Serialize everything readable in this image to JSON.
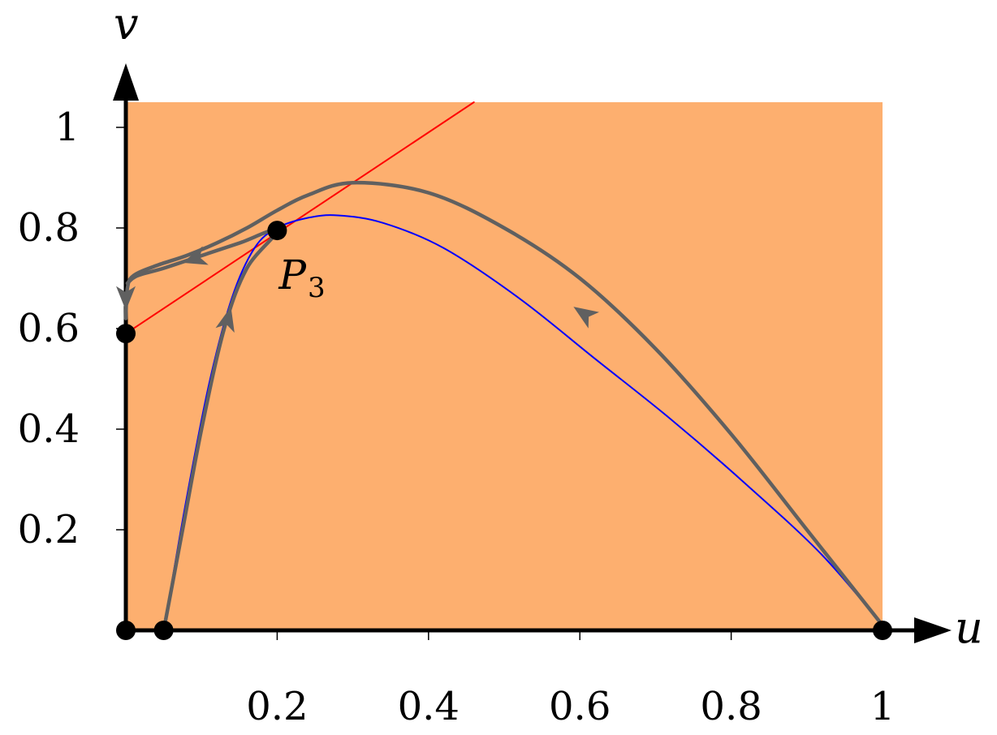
{
  "chart_data": {
    "type": "line",
    "xlabel": "u",
    "ylabel": "v",
    "xlim": [
      0,
      1
    ],
    "ylim": [
      0,
      1.05
    ],
    "grid": false,
    "region_color": "#fdaf6f",
    "x_ticks": [
      {
        "value": 0.2,
        "label": "0.2"
      },
      {
        "value": 0.4,
        "label": "0.4"
      },
      {
        "value": 0.6,
        "label": "0.6"
      },
      {
        "value": 0.8,
        "label": "0.8"
      },
      {
        "value": 1.0,
        "label": "1"
      }
    ],
    "y_ticks": [
      {
        "value": 0.2,
        "label": "0.2"
      },
      {
        "value": 0.4,
        "label": "0.4"
      },
      {
        "value": 0.6,
        "label": "0.6"
      },
      {
        "value": 0.8,
        "label": "0.8"
      },
      {
        "value": 1.0,
        "label": "1"
      }
    ],
    "series": [
      {
        "role": "straight-nullcline",
        "color": "#ff0000",
        "points": [
          [
            0,
            0.59
          ],
          [
            0.46,
            1.05
          ]
        ]
      },
      {
        "role": "curved-nullcline",
        "color": "#0000ff",
        "points": [
          [
            0.05,
            0
          ],
          [
            0.08,
            0.26
          ],
          [
            0.11,
            0.49
          ],
          [
            0.14,
            0.66
          ],
          [
            0.17,
            0.76
          ],
          [
            0.2,
            0.8
          ],
          [
            0.24,
            0.82
          ],
          [
            0.28,
            0.825
          ],
          [
            0.34,
            0.81
          ],
          [
            0.42,
            0.76
          ],
          [
            0.52,
            0.66
          ],
          [
            0.62,
            0.54
          ],
          [
            0.72,
            0.42
          ],
          [
            0.82,
            0.29
          ],
          [
            0.92,
            0.15
          ],
          [
            1.0,
            0.01
          ]
        ]
      },
      {
        "role": "trajectory-upper",
        "color": "#606060",
        "points": [
          [
            1.0,
            0.01
          ],
          [
            0.9,
            0.2
          ],
          [
            0.8,
            0.39
          ],
          [
            0.7,
            0.56
          ],
          [
            0.6,
            0.7
          ],
          [
            0.5,
            0.8
          ],
          [
            0.4,
            0.87
          ],
          [
            0.3,
            0.89
          ],
          [
            0.24,
            0.865
          ],
          [
            0.2,
            0.835
          ],
          [
            0.16,
            0.8
          ],
          [
            0.12,
            0.77
          ],
          [
            0.08,
            0.745
          ],
          [
            0.04,
            0.725
          ],
          [
            0.01,
            0.705
          ],
          [
            0.002,
            0.68
          ],
          [
            0.0,
            0.62
          ]
        ]
      },
      {
        "role": "trajectory-lower",
        "color": "#606060",
        "points": [
          [
            0.05,
            0
          ],
          [
            0.075,
            0.2
          ],
          [
            0.1,
            0.4
          ],
          [
            0.13,
            0.6
          ],
          [
            0.16,
            0.72
          ],
          [
            0.2,
            0.795
          ],
          [
            0.15,
            0.77
          ],
          [
            0.1,
            0.745
          ],
          [
            0.05,
            0.72
          ],
          [
            0.015,
            0.705
          ],
          [
            0.002,
            0.69
          ]
        ]
      }
    ],
    "arrows": [
      {
        "at": [
          0.605,
          0.63
        ],
        "toward": [
          0.59,
          0.645
        ],
        "color": "#606060"
      },
      {
        "at": [
          0.09,
          0.738
        ],
        "toward": [
          0.075,
          0.731
        ],
        "color": "#606060"
      },
      {
        "at": [
          0.135,
          0.62
        ],
        "toward": [
          0.14,
          0.65
        ],
        "color": "#606060"
      },
      {
        "at": [
          0.0,
          0.66
        ],
        "toward": [
          0.0,
          0.63
        ],
        "color": "#606060"
      }
    ],
    "points": [
      {
        "x": 0,
        "y": 0
      },
      {
        "x": 0.05,
        "y": 0
      },
      {
        "x": 1.0,
        "y": 0
      },
      {
        "x": 0,
        "y": 0.59
      },
      {
        "x": 0.2,
        "y": 0.795,
        "label": "P",
        "label_sub": "3"
      }
    ]
  }
}
